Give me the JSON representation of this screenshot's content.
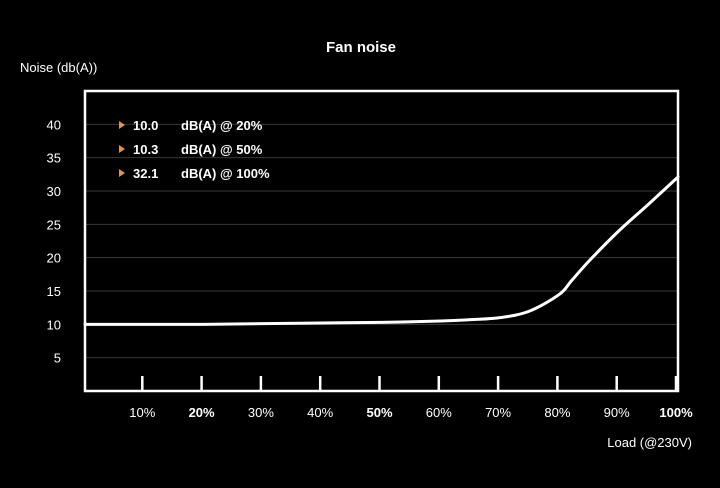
{
  "chart_data": {
    "type": "line",
    "title": "Fan noise",
    "ylabel": "Noise (db(A))",
    "xlabel": "Load (@230V)",
    "ylim": [
      0,
      45
    ],
    "yticks": [
      5,
      10,
      15,
      20,
      25,
      30,
      35,
      40
    ],
    "xlim": [
      0,
      100
    ],
    "xticks": [
      {
        "value": 10,
        "label": "10%",
        "bold": false
      },
      {
        "value": 20,
        "label": "20%",
        "bold": true
      },
      {
        "value": 30,
        "label": "30%",
        "bold": false
      },
      {
        "value": 40,
        "label": "40%",
        "bold": false
      },
      {
        "value": 50,
        "label": "50%",
        "bold": true
      },
      {
        "value": 60,
        "label": "60%",
        "bold": false
      },
      {
        "value": 70,
        "label": "70%",
        "bold": false
      },
      {
        "value": 80,
        "label": "80%",
        "bold": false
      },
      {
        "value": 90,
        "label": "90%",
        "bold": false
      },
      {
        "value": 100,
        "label": "100%",
        "bold": true
      }
    ],
    "grid": true,
    "series": [
      {
        "x": [
          0,
          10,
          20,
          30,
          40,
          50,
          60,
          65,
          70,
          75,
          80,
          82,
          85,
          90,
          95,
          100
        ],
        "y": [
          10.0,
          10.0,
          10.0,
          10.1,
          10.2,
          10.3,
          10.5,
          10.7,
          11.0,
          12.0,
          14.5,
          16.5,
          19.5,
          24.0,
          28.0,
          32.1
        ]
      }
    ],
    "annotations": [
      {
        "value": "10.0",
        "text": "dB(A) @ 20%"
      },
      {
        "value": "10.3",
        "text": "dB(A) @ 50%"
      },
      {
        "value": "32.1",
        "text": "dB(A) @ 100%"
      }
    ],
    "colors": {
      "background": "#000000",
      "line": "#ffffff",
      "grid": "#3a3a3a",
      "frame": "#ffffff",
      "marker": "#e8914a"
    }
  }
}
